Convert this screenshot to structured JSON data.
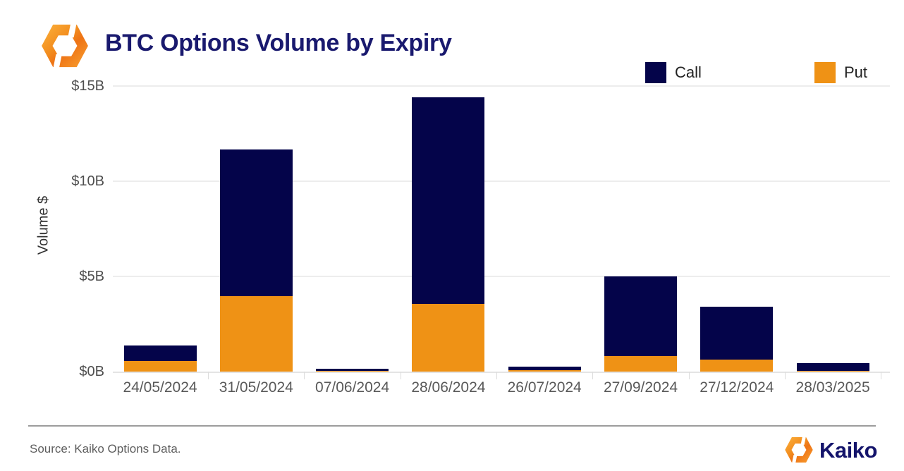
{
  "header": {
    "title": "BTC Options Volume by Expiry"
  },
  "legend": [
    {
      "label": "Call",
      "color": "#04044a"
    },
    {
      "label": "Put",
      "color": "#ef9215"
    }
  ],
  "chart_data": {
    "type": "bar",
    "stacked": true,
    "title": "BTC Options Volume by Expiry",
    "xlabel": "",
    "ylabel": "Volume $",
    "unit": "billion USD",
    "categories": [
      "24/05/2024",
      "31/05/2024",
      "07/06/2024",
      "28/06/2024",
      "26/07/2024",
      "27/09/2024",
      "27/12/2024",
      "28/03/2025"
    ],
    "series": [
      {
        "name": "Put",
        "color": "#ef9215",
        "values": [
          0.55,
          3.97,
          0.03,
          3.56,
          0.06,
          0.83,
          0.63,
          0.03
        ]
      },
      {
        "name": "Call",
        "color": "#04044a",
        "values": [
          0.82,
          7.7,
          0.12,
          10.86,
          0.21,
          4.17,
          2.78,
          0.42
        ]
      }
    ],
    "totals": [
      1.37,
      11.67,
      0.15,
      14.42,
      0.27,
      5.0,
      3.41,
      0.45
    ],
    "ylim": [
      0,
      15
    ],
    "yticks": [
      {
        "value": 15,
        "label": "$15B"
      },
      {
        "value": 10,
        "label": "$10B"
      },
      {
        "value": 5,
        "label": "$5B"
      },
      {
        "value": 0,
        "label": "$0B"
      }
    ],
    "grid": true,
    "legend_position": "top-right"
  },
  "footer": {
    "source": "Source: Kaiko Options Data.",
    "brand": "Kaiko"
  }
}
